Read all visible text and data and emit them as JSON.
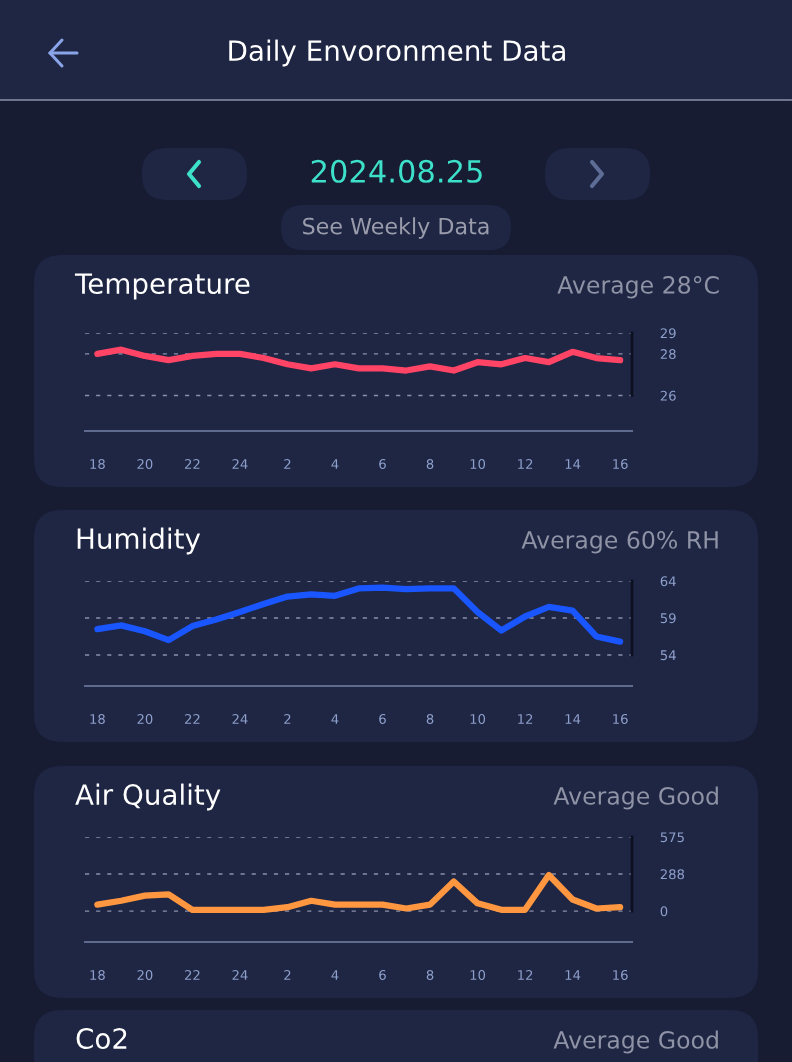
{
  "chart_data": [
    {
      "type": "other",
      "title": "Daily Envoronment Data",
      "annotations": [
        "2024.08.25",
        "See Weekly Data"
      ]
    },
    {
      "type": "line",
      "title": "Temperature",
      "annotations": [
        "Average 28°C"
      ],
      "categories": [
        "18",
        null,
        "20",
        null,
        "22",
        null,
        "24",
        null,
        "2",
        null,
        "4",
        null,
        "6",
        null,
        "8",
        null,
        "10",
        null,
        "12",
        null,
        "14",
        null,
        "16"
      ],
      "series": [
        {
          "color": "#ff4466",
          "values": [
            28.0,
            28.2,
            27.9,
            27.7,
            27.9,
            28.0,
            28.0,
            27.8,
            27.5,
            27.3,
            27.5,
            27.3,
            27.3,
            27.2,
            27.4,
            27.2,
            27.6,
            27.5,
            27.8,
            27.6,
            28.1,
            27.8,
            27.7
          ]
        }
      ],
      "ylim": [
        24.3,
        29
      ],
      "yticks": [
        26,
        28,
        29
      ],
      "grid": "y",
      "marker": "none",
      "line_style": "solid"
    },
    {
      "type": "line",
      "title": "Humidity",
      "annotations": [
        "Average 60% RH"
      ],
      "categories": [
        "18",
        null,
        "20",
        null,
        "22",
        null,
        "24",
        null,
        "2",
        null,
        "4",
        null,
        "6",
        null,
        "8",
        null,
        "10",
        null,
        "12",
        null,
        "14",
        null,
        "16"
      ],
      "series": [
        {
          "color": "#1a56ff",
          "values": [
            57.5,
            58.0,
            57.2,
            56.0,
            57.9,
            58.8,
            59.8,
            60.9,
            61.9,
            62.2,
            62.0,
            63.0,
            63.1,
            62.9,
            63.0,
            63.0,
            59.8,
            57.3,
            59.2,
            60.5,
            60.0,
            56.5,
            55.8
          ]
        }
      ],
      "ylim": [
        49.8,
        64
      ],
      "yticks": [
        54,
        59,
        64
      ],
      "grid": "y",
      "marker": "none",
      "line_style": "solid"
    },
    {
      "type": "line",
      "title": "Air Quality",
      "annotations": [
        "Average Good"
      ],
      "categories": [
        "18",
        null,
        "20",
        null,
        "22",
        null,
        "24",
        null,
        "2",
        null,
        "4",
        null,
        "6",
        null,
        "8",
        null,
        "10",
        null,
        "12",
        null,
        "14",
        null,
        "16"
      ],
      "series": [
        {
          "color": "#ff9640",
          "values": [
            50,
            80,
            120,
            130,
            10,
            10,
            10,
            10,
            30,
            80,
            50,
            50,
            50,
            20,
            50,
            230,
            60,
            10,
            10,
            280,
            90,
            20,
            30
          ]
        }
      ],
      "ylim": [
        -240,
        575
      ],
      "yticks": [
        0,
        288,
        575
      ],
      "grid": "y",
      "marker": "none",
      "line_style": "solid"
    },
    {
      "type": "other",
      "title": "Co2",
      "annotations": [
        "Average Good"
      ]
    }
  ]
}
